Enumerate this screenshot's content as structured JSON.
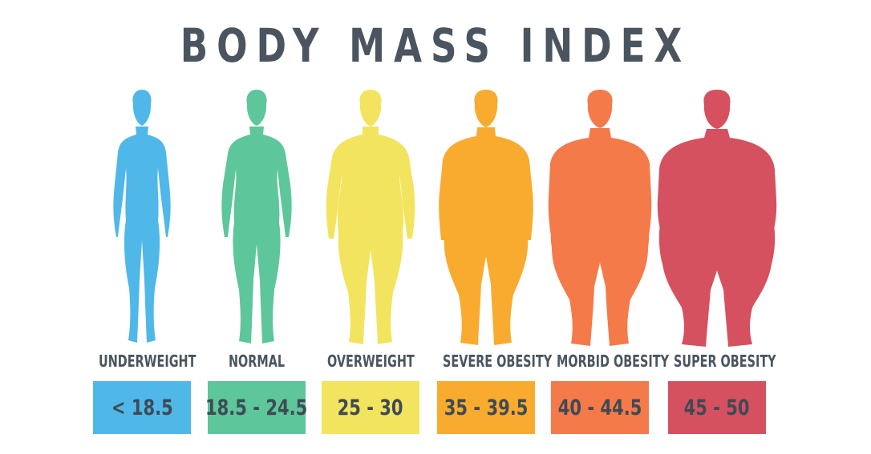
{
  "title": "BODY MASS INDEX",
  "categories": [
    {
      "label": "UNDERWEIGHT",
      "range": "< 18.5",
      "color": "#4fb8e9"
    },
    {
      "label": "NORMAL",
      "range": "18.5 - 24.5",
      "color": "#5ec69b"
    },
    {
      "label": "OVERWEIGHT",
      "range": "25 - 30",
      "color": "#f3e45f"
    },
    {
      "label": "SEVERE OBESITY",
      "range": "35 - 39.5",
      "color": "#f8ab2e"
    },
    {
      "label": "MORBID OBESITY",
      "range": "40 - 44.5",
      "color": "#f47a4a"
    },
    {
      "label": "SUPER OBESITY",
      "range": "45 - 50",
      "color": "#d5515f"
    }
  ]
}
